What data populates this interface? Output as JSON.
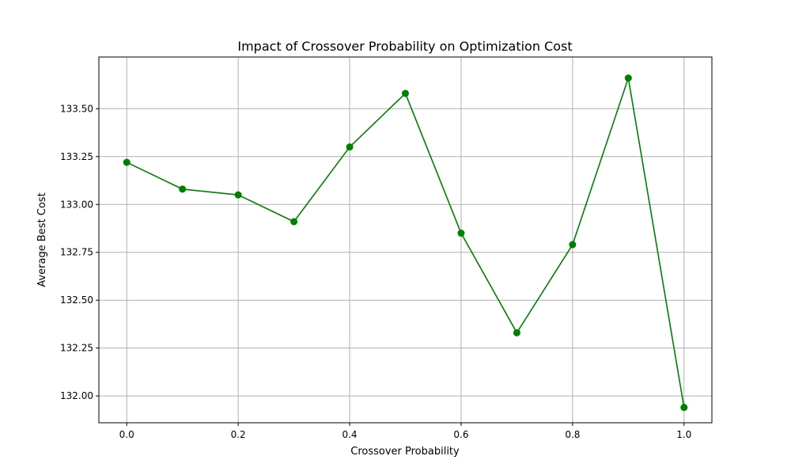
{
  "chart_data": {
    "type": "line",
    "title": "Impact of Crossover Probability on Optimization Cost",
    "xlabel": "Crossover Probability",
    "ylabel": "Average Best Cost",
    "xlim": [
      -0.05,
      1.05
    ],
    "ylim": [
      131.86,
      133.77
    ],
    "x_ticks": [
      0.0,
      0.2,
      0.4,
      0.6,
      0.8,
      1.0
    ],
    "x_tick_labels": [
      "0.0",
      "0.2",
      "0.4",
      "0.6",
      "0.8",
      "1.0"
    ],
    "y_ticks": [
      132.0,
      132.25,
      132.5,
      132.75,
      133.0,
      133.25,
      133.5
    ],
    "y_tick_labels": [
      "132.00",
      "132.25",
      "132.50",
      "132.75",
      "133.00",
      "133.25",
      "133.50"
    ],
    "grid": true,
    "legend": "none",
    "series": [
      {
        "color": "#008000",
        "marker": "circle",
        "x": [
          0.0,
          0.1,
          0.2,
          0.3,
          0.4,
          0.5,
          0.6,
          0.7,
          0.8,
          0.9,
          1.0
        ],
        "y": [
          133.22,
          133.08,
          133.05,
          132.91,
          133.3,
          133.58,
          132.85,
          132.33,
          132.79,
          133.66,
          131.94
        ]
      }
    ]
  }
}
